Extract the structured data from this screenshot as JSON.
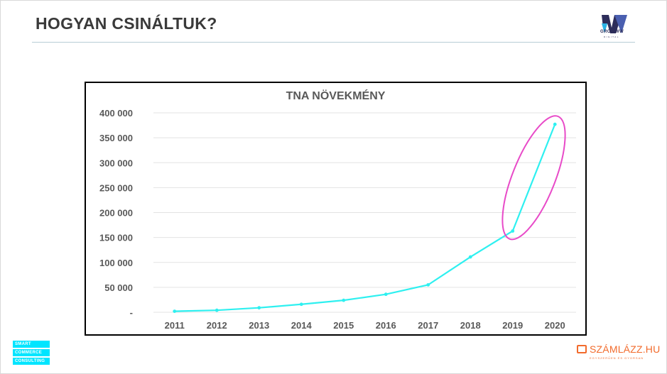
{
  "slide": {
    "title": "HOGYAN CSINÁLTUK?"
  },
  "brand": {
    "name": "GROWWW",
    "tagline": "DIGITAL",
    "color": "#2d2d5a"
  },
  "footer": {
    "left_logo_lines": [
      "SMART",
      "COMMERCE",
      "CONSULTING"
    ],
    "left_logo_color": "#00e5ff",
    "right_logo_text": "SZÁMLÁZZ.HU",
    "right_logo_tagline": "EGYSZERŰEN ÉS GYORSAN",
    "right_logo_color": "#f26b2c"
  },
  "chart_data": {
    "type": "line",
    "title": "TNA NÖVEKMÉNY",
    "x": [
      "2011",
      "2012",
      "2013",
      "2014",
      "2015",
      "2016",
      "2017",
      "2018",
      "2019",
      "2020"
    ],
    "values": [
      2000,
      4000,
      9000,
      16000,
      24000,
      36000,
      55000,
      111000,
      163000,
      377000
    ],
    "ylim": [
      0,
      400000
    ],
    "yticks": [
      0,
      50000,
      100000,
      150000,
      200000,
      250000,
      300000,
      350000,
      400000
    ],
    "ytick_labels": [
      "-",
      "50 000",
      "100 000",
      "150 000",
      "200 000",
      "250 000",
      "300 000",
      "350 000",
      "400 000"
    ],
    "line_color": "#2ef0f0",
    "highlight_color": "#e84ac8",
    "highlight_range": [
      "2019",
      "2020"
    ],
    "grid": true
  }
}
